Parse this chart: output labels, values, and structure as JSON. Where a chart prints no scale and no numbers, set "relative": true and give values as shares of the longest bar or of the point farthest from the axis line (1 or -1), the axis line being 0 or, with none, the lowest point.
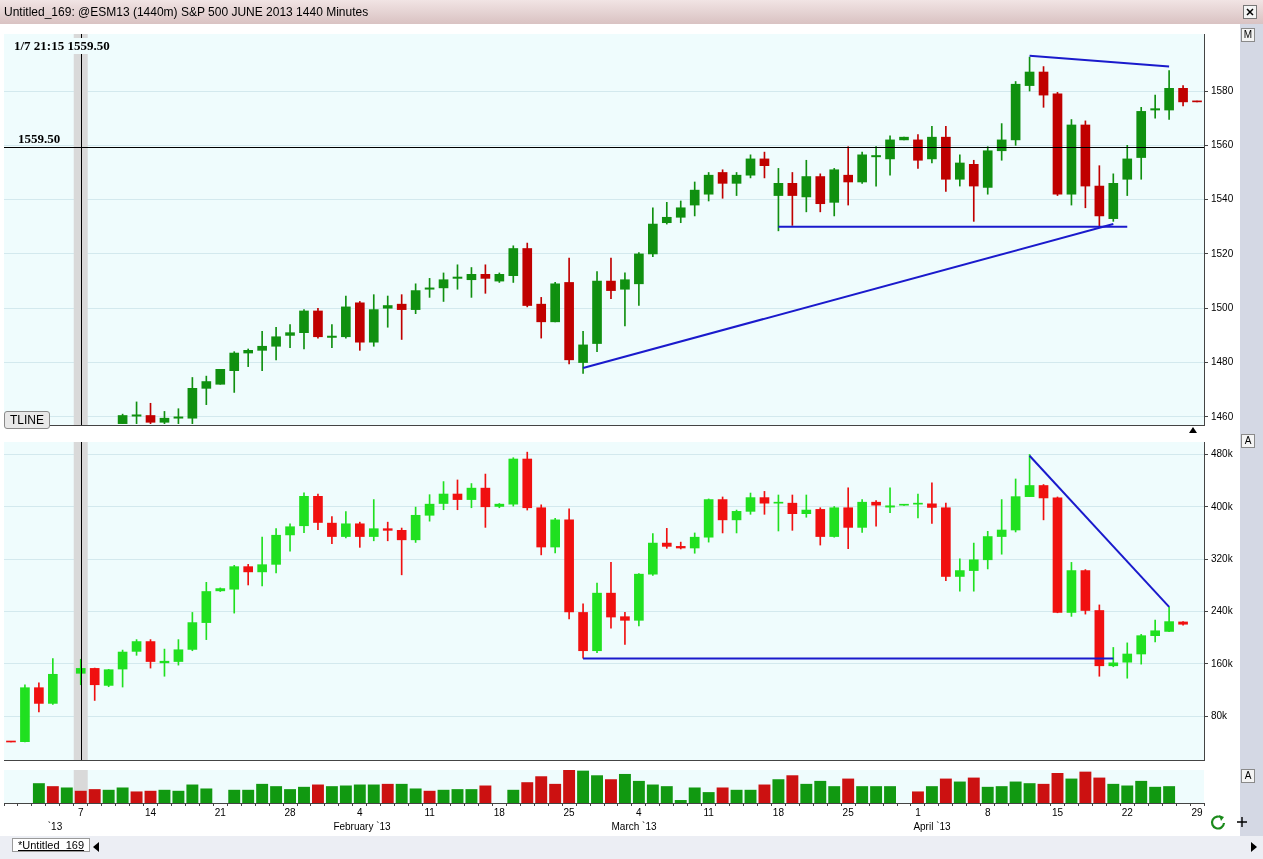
{
  "chart_data": [
    {
      "type": "candlestick",
      "title": "Untitled_169: @ESM13 (1440m) S&P 500 JUNE 2013 1440 Minutes",
      "categories": [
        null,
        null,
        null,
        null,
        null,
        "7",
        null,
        null,
        null,
        null,
        "14",
        null,
        null,
        null,
        null,
        "21",
        null,
        null,
        null,
        null,
        "28",
        null,
        null,
        null,
        null,
        "4",
        null,
        null,
        null,
        null,
        "11",
        null,
        null,
        null,
        null,
        "18",
        null,
        null,
        null,
        null,
        "25",
        null,
        null,
        null,
        null,
        "4",
        null,
        null,
        null,
        null,
        "11",
        null,
        null,
        null,
        null,
        "18",
        null,
        null,
        null,
        null,
        "25",
        null,
        null,
        null,
        null,
        "1",
        null,
        null,
        null,
        null,
        "8",
        null,
        null,
        null,
        null,
        "15",
        null,
        null,
        null,
        null,
        "22",
        null,
        null,
        null,
        null,
        "29"
      ],
      "ohlc": [
        null,
        null,
        null,
        null,
        null,
        null,
        null,
        null,
        [
          1457.5,
          1461,
          1457.5,
          1460.5
        ],
        [
          1460.25,
          1465.5,
          1457.5,
          1460.75
        ],
        [
          1460.5,
          1465,
          1457.5,
          1458
        ],
        [
          1458,
          1462,
          1457.5,
          1459.5
        ],
        [
          1459.5,
          1463,
          1457.5,
          1460
        ],
        [
          1459.5,
          1474.5,
          1457.5,
          1470.5
        ],
        [
          1470.5,
          1475,
          1464.5,
          1473
        ],
        [
          1472,
          1477.5,
          1472,
          1477.5
        ],
        [
          1477,
          1484,
          1469,
          1483.5
        ],
        [
          1483.5,
          1485,
          1478.5,
          1484.5
        ],
        [
          1484.5,
          1491.5,
          1477,
          1486
        ],
        [
          1486,
          1493,
          1481,
          1489.5
        ],
        [
          1490,
          1494,
          1485.5,
          1491
        ],
        [
          1491,
          1499.5,
          1485,
          1499
        ],
        [
          1499,
          1500,
          1489,
          1489.5
        ],
        [
          1489.25,
          1494,
          1485.5,
          1489.75
        ],
        [
          1489.5,
          1504.5,
          1489,
          1500.5
        ],
        [
          1502,
          1502.5,
          1484.5,
          1487.5
        ],
        [
          1487.5,
          1505,
          1486,
          1499.5
        ],
        [
          1500,
          1504.5,
          1493,
          1501
        ],
        [
          1501.5,
          1505,
          1488.5,
          1499.5
        ],
        [
          1499.5,
          1509,
          1498,
          1506.5
        ],
        [
          1507,
          1511,
          1504,
          1507.5
        ],
        [
          1507.5,
          1513,
          1502.5,
          1510.5
        ],
        [
          1511,
          1516,
          1507,
          1511.5
        ],
        [
          1510.5,
          1515,
          1504,
          1512.5
        ],
        [
          1512.5,
          1516,
          1505.5,
          1511
        ],
        [
          1510,
          1513,
          1509.5,
          1512.5
        ],
        [
          1512,
          1523,
          1509.5,
          1522
        ],
        [
          1522,
          1524,
          1500.5,
          1501
        ],
        [
          1501.5,
          1504,
          1489,
          1495
        ],
        [
          1495,
          1509.5,
          1495,
          1509
        ],
        [
          1509.5,
          1518.5,
          1479.5,
          1481
        ],
        [
          1480,
          1491.5,
          1476,
          1486.5
        ],
        [
          1487,
          1513.5,
          1484,
          1510
        ],
        [
          1510,
          1518.5,
          1503.5,
          1506.5
        ],
        [
          1507,
          1513,
          1493.5,
          1510.5
        ],
        [
          1509,
          1520.5,
          1501,
          1520
        ],
        [
          1520,
          1537,
          1519,
          1531
        ],
        [
          1531.5,
          1539,
          1531,
          1533.5
        ],
        [
          1533.5,
          1539.5,
          1531.5,
          1537
        ],
        [
          1538,
          1546.5,
          1534,
          1543.5
        ],
        [
          1542,
          1550,
          1539.5,
          1549
        ],
        [
          1550,
          1551,
          1540.5,
          1546
        ],
        [
          1546,
          1550,
          1541.5,
          1549
        ],
        [
          1549,
          1556.5,
          1548,
          1555
        ],
        [
          1555,
          1557.5,
          1548,
          1552.5
        ],
        [
          1541.5,
          1551.5,
          1528.5,
          1546
        ],
        [
          1546,
          1550,
          1530.5,
          1541.5
        ],
        [
          1541,
          1554.5,
          1535.5,
          1548.5
        ],
        [
          1548.5,
          1549.5,
          1535.5,
          1538.5
        ],
        [
          1539,
          1551.5,
          1534,
          1551
        ],
        [
          1549,
          1559.5,
          1538,
          1546.5
        ],
        [
          1546.5,
          1557.5,
          1546,
          1556.5
        ],
        [
          1555.75,
          1559.5,
          1545,
          1556.25
        ],
        [
          1555,
          1563.5,
          1549,
          1562
        ],
        [
          1562,
          1563,
          1562,
          1563
        ],
        [
          1562,
          1564,
          1551.5,
          1554.5
        ],
        [
          1555,
          1567,
          1553.5,
          1563
        ],
        [
          1563,
          1567,
          1543,
          1547.5
        ],
        [
          1547.5,
          1556.5,
          1545,
          1553.5
        ],
        [
          1553,
          1554.5,
          1532,
          1545
        ],
        [
          1544.5,
          1559.5,
          1542,
          1558
        ],
        [
          1558,
          1568,
          1554.5,
          1562
        ],
        [
          1562,
          1583.5,
          1560,
          1582.5
        ],
        [
          1582,
          1592.5,
          1580,
          1587
        ],
        [
          1587,
          1589,
          1574,
          1578.5
        ],
        [
          1579,
          1579.5,
          1541.5,
          1542
        ],
        [
          1542,
          1569.5,
          1538,
          1567.5
        ],
        [
          1567.5,
          1569,
          1537,
          1545
        ],
        [
          1545,
          1552.5,
          1530,
          1534
        ],
        [
          1533,
          1549.5,
          1532,
          1546
        ],
        [
          1547.5,
          1560,
          1541.5,
          1555
        ],
        [
          1555.5,
          1574,
          1547.5,
          1572.5
        ],
        [
          1573,
          1578.5,
          1570,
          1573.5
        ],
        [
          1573,
          1587.5,
          1569.5,
          1581
        ],
        [
          1581,
          1582,
          1574.5,
          1576
        ],
        [
          1576.25,
          1576.25,
          1576,
          1576
        ]
      ],
      "colors": [
        null,
        null,
        null,
        null,
        null,
        null,
        null,
        null,
        "#109010",
        "#109010",
        "#c00000",
        "#109010",
        "#109010",
        "#109010",
        "#109010",
        "#109010",
        "#109010",
        "#109010",
        "#109010",
        "#109010",
        "#109010",
        "#109010",
        "#c00000",
        "#109010",
        "#109010",
        "#c00000",
        "#109010",
        "#109010",
        "#c00000",
        "#109010",
        "#109010",
        "#109010",
        "#109010",
        "#109010",
        "#c00000",
        "#109010",
        "#109010",
        "#c00000",
        "#c00000",
        "#109010",
        "#c00000",
        "#109010",
        "#109010",
        "#c00000",
        "#109010",
        "#109010",
        "#109010",
        "#109010",
        "#109010",
        "#109010",
        "#109010",
        "#c00000",
        "#109010",
        "#109010",
        "#c00000",
        "#109010",
        "#c00000",
        "#109010",
        "#c00000",
        "#109010",
        "#c00000",
        "#109010",
        "#109010",
        "#109010",
        "#109010",
        "#c00000",
        "#109010",
        "#c00000",
        "#109010",
        "#c00000",
        "#109010",
        "#109010",
        "#109010",
        "#109010",
        "#c00000",
        "#c00000",
        "#109010",
        "#c00000",
        "#c00000",
        "#109010",
        "#109010",
        "#109010",
        "#109010",
        "#109010",
        "#c00000",
        "#c00000"
      ],
      "series": [
        {
          "type": "line",
          "color": "#1a1acc",
          "values": [
            null,
            null,
            null,
            null,
            null,
            null,
            null,
            null,
            null,
            null,
            null,
            null,
            null,
            null,
            null,
            null,
            null,
            null,
            null,
            null,
            null,
            null,
            null,
            null,
            null,
            null,
            null,
            null,
            null,
            null,
            null,
            null,
            null,
            null,
            null,
            null,
            null,
            null,
            null,
            null,
            null,
            1478,
            null,
            null,
            null,
            null,
            null,
            null,
            null,
            null,
            null,
            null,
            null,
            null,
            null,
            null,
            null,
            null,
            null,
            null,
            null,
            null,
            null,
            null,
            null,
            null,
            null,
            null,
            null,
            null,
            null,
            null,
            null,
            null,
            null,
            null,
            null,
            null,
            null,
            1531,
            null,
            null,
            null,
            null,
            null,
            null
          ]
        },
        {
          "type": "line",
          "color": "#1a1acc",
          "values": [
            null,
            null,
            null,
            null,
            null,
            null,
            null,
            null,
            null,
            null,
            null,
            null,
            null,
            null,
            null,
            null,
            null,
            null,
            null,
            null,
            null,
            null,
            null,
            null,
            null,
            null,
            null,
            null,
            null,
            null,
            null,
            null,
            null,
            null,
            null,
            null,
            null,
            null,
            null,
            null,
            null,
            null,
            null,
            null,
            null,
            null,
            null,
            null,
            null,
            null,
            null,
            null,
            null,
            null,
            null,
            1530,
            null,
            null,
            null,
            null,
            null,
            null,
            null,
            null,
            null,
            null,
            null,
            null,
            null,
            null,
            null,
            null,
            null,
            null,
            null,
            null,
            null,
            null,
            null,
            null,
            1530,
            null,
            null,
            null,
            null,
            null
          ]
        },
        {
          "type": "line",
          "color": "#1a1acc",
          "values": [
            null,
            null,
            null,
            null,
            null,
            null,
            null,
            null,
            null,
            null,
            null,
            null,
            null,
            null,
            null,
            null,
            null,
            null,
            null,
            null,
            null,
            null,
            null,
            null,
            null,
            null,
            null,
            null,
            null,
            null,
            null,
            null,
            null,
            null,
            null,
            null,
            null,
            null,
            null,
            null,
            null,
            null,
            null,
            null,
            null,
            null,
            null,
            null,
            null,
            null,
            null,
            null,
            null,
            null,
            null,
            null,
            null,
            null,
            null,
            null,
            null,
            null,
            null,
            null,
            null,
            null,
            null,
            null,
            null,
            null,
            null,
            null,
            null,
            1593,
            null,
            null,
            null,
            null,
            null,
            null,
            null,
            null,
            null,
            1589,
            null,
            null
          ]
        }
      ],
      "ylim": [
        1457,
        1601
      ],
      "yticks": [
        1460,
        1480,
        1500,
        1520,
        1540,
        1560,
        1580
      ],
      "grid": "y",
      "tick_labels": "y",
      "ref_lines": [
        {
          "axis": "y",
          "value": 1559.5,
          "label": "1559.50",
          "color": "#000000"
        },
        {
          "axis": "x",
          "value": "7",
          "color": "#000000"
        }
      ],
      "bands": [
        {
          "axis": "x",
          "from": "7",
          "to": "7",
          "color": "#d9d9d9"
        }
      ],
      "annotations": [
        "1/7 21:15 1559.50",
        "TLINE",
        "M"
      ]
    },
    {
      "type": "candlestick",
      "categories": [
        null,
        null,
        null,
        null,
        null,
        "7",
        null,
        null,
        null,
        null,
        "14",
        null,
        null,
        null,
        null,
        "21",
        null,
        null,
        null,
        null,
        "28",
        null,
        null,
        null,
        null,
        "4",
        null,
        null,
        null,
        null,
        "11",
        null,
        null,
        null,
        null,
        "18",
        null,
        null,
        null,
        null,
        "25",
        null,
        null,
        null,
        null,
        "4",
        null,
        null,
        null,
        null,
        "11",
        null,
        null,
        null,
        null,
        "18",
        null,
        null,
        null,
        null,
        "25",
        null,
        null,
        null,
        null,
        "1",
        null,
        null,
        null,
        null,
        "8",
        null,
        null,
        null,
        null,
        "15",
        null,
        null,
        null,
        null,
        "22",
        null,
        null,
        null,
        null,
        "29"
      ],
      "ohlc": [
        [
          41,
          41,
          40.5,
          40.5
        ],
        [
          41,
          128,
          40.5,
          123.5
        ],
        [
          123.5,
          131,
          86.5,
          99.5
        ],
        [
          99.5,
          168,
          98,
          144
        ],
        null,
        [
          145.5,
          167,
          128,
          153
        ],
        [
          153,
          153.5,
          104,
          128
        ],
        [
          127,
          151.5,
          125,
          151
        ],
        [
          152,
          181,
          124.5,
          178
        ],
        [
          179,
          197,
          173,
          194
        ],
        [
          194,
          197,
          153.5,
          163.5
        ],
        [
          161.5,
          182.5,
          141,
          164
        ],
        [
          163.5,
          197,
          158,
          181.5
        ],
        [
          182,
          238.5,
          180,
          223
        ],
        [
          223,
          284.5,
          197,
          270.5
        ],
        [
          271.5,
          276,
          270.5,
          275
        ],
        [
          274,
          310.5,
          237.5,
          308.5
        ],
        [
          308.5,
          312,
          280.5,
          300.5
        ],
        [
          300.5,
          353.5,
          279,
          311.5
        ],
        [
          312,
          366.5,
          299,
          356.5
        ],
        [
          357,
          374,
          332,
          369.5
        ],
        [
          371,
          421.5,
          360.5,
          416
        ],
        [
          416,
          419.5,
          365,
          376
        ],
        [
          375,
          385,
          343.5,
          354.5
        ],
        [
          354.5,
          392.5,
          352.5,
          374
        ],
        [
          374,
          376.5,
          338,
          354.5
        ],
        [
          354.5,
          411,
          348,
          366.5
        ],
        [
          366.5,
          376.5,
          348,
          364
        ],
        [
          364,
          367.5,
          296,
          349.5
        ],
        [
          349.5,
          399.5,
          345.5,
          387
        ],
        [
          387,
          418.5,
          378,
          404
        ],
        [
          405,
          438.5,
          395.5,
          419.5
        ],
        [
          419.5,
          441,
          395.5,
          411
        ],
        [
          411,
          435.5,
          398.5,
          428.5
        ],
        [
          428.5,
          450,
          368.5,
          400
        ],
        [
          400.5,
          405,
          398.5,
          404
        ],
        [
          404,
          475,
          401,
          473
        ],
        [
          473,
          483.5,
          395,
          398.5
        ],
        [
          398.5,
          403,
          326.5,
          338.5
        ],
        [
          338.5,
          382.5,
          329.5,
          380
        ],
        [
          380,
          397,
          228.5,
          239.5
        ],
        [
          238.5,
          251.5,
          168.5,
          180
        ],
        [
          180,
          283.5,
          177,
          268
        ],
        [
          268,
          315,
          214.5,
          231.5
        ],
        [
          232,
          238.5,
          189.5,
          226.5
        ],
        [
          226.5,
          298,
          218,
          297
        ],
        [
          297,
          359,
          295,
          344.5
        ],
        [
          344.5,
          367,
          336.5,
          339.5
        ],
        [
          339.5,
          346,
          335.5,
          337
        ],
        [
          337,
          360,
          329,
          353.5
        ],
        [
          353.5,
          412,
          346,
          411
        ],
        [
          411,
          415,
          360,
          380
        ],
        [
          380,
          395,
          360,
          393
        ],
        [
          393,
          421,
          388.5,
          414
        ],
        [
          414,
          423.5,
          388.5,
          405.5
        ],
        [
          405.5,
          418,
          363,
          406.5
        ],
        [
          405.5,
          418,
          364,
          389.5
        ],
        [
          389.5,
          418,
          384,
          395
        ],
        [
          396,
          398.5,
          341.5,
          354.5
        ],
        [
          354.5,
          400.5,
          353.5,
          398.5
        ],
        [
          398.5,
          429,
          336,
          368.5
        ],
        [
          368.5,
          411,
          361,
          407
        ],
        [
          407,
          409.5,
          370.5,
          402.5
        ],
        [
          399.5,
          429,
          391,
          401.5
        ],
        [
          402.4,
          403,
          402,
          402.8
        ],
        [
          404,
          419.5,
          383,
          404.5
        ],
        [
          404.5,
          436.5,
          374.5,
          399
        ],
        [
          398.5,
          405.5,
          287,
          293.5
        ],
        [
          293.5,
          320.5,
          271,
          302.5
        ],
        [
          302.5,
          344.5,
          271,
          319
        ],
        [
          319,
          362.5,
          305,
          354.5
        ],
        [
          354.5,
          411,
          327.5,
          364.5
        ],
        [
          364.5,
          442.5,
          361.5,
          415.5
        ],
        [
          415.5,
          480,
          415.5,
          432.5
        ],
        [
          432.5,
          434,
          380,
          413.5
        ],
        [
          413.5,
          415,
          238,
          238.5
        ],
        [
          238.5,
          315,
          232.5,
          302.5
        ],
        [
          302.5,
          304,
          236,
          241.5
        ],
        [
          241.5,
          250,
          141,
          157
        ],
        [
          157,
          185,
          155.5,
          161.5
        ],
        [
          162.5,
          192,
          138,
          175
        ],
        [
          175,
          205,
          159.5,
          203
        ],
        [
          203,
          227,
          193.5,
          210.5
        ],
        [
          209.5,
          247,
          209,
          224.5
        ],
        [
          224,
          224.5,
          219,
          220.5
        ],
        null
      ],
      "colors": [
        "#f01010",
        "#20e020",
        "#f01010",
        "#20e020",
        null,
        "#20e020",
        "#f01010",
        "#20e020",
        "#20e020",
        "#20e020",
        "#f01010",
        "#20e020",
        "#20e020",
        "#20e020",
        "#20e020",
        "#20e020",
        "#20e020",
        "#f01010",
        "#20e020",
        "#20e020",
        "#20e020",
        "#20e020",
        "#f01010",
        "#f01010",
        "#20e020",
        "#f01010",
        "#20e020",
        "#f01010",
        "#f01010",
        "#20e020",
        "#20e020",
        "#20e020",
        "#f01010",
        "#20e020",
        "#f01010",
        "#20e020",
        "#20e020",
        "#f01010",
        "#f01010",
        "#20e020",
        "#f01010",
        "#f01010",
        "#20e020",
        "#f01010",
        "#f01010",
        "#20e020",
        "#20e020",
        "#f01010",
        "#f01010",
        "#20e020",
        "#20e020",
        "#f01010",
        "#20e020",
        "#20e020",
        "#f01010",
        "#20e020",
        "#f01010",
        "#20e020",
        "#f01010",
        "#20e020",
        "#f01010",
        "#20e020",
        "#f01010",
        "#20e020",
        "#20e020",
        "#20e020",
        "#f01010",
        "#f01010",
        "#20e020",
        "#20e020",
        "#20e020",
        "#20e020",
        "#20e020",
        "#20e020",
        "#f01010",
        "#f01010",
        "#20e020",
        "#f01010",
        "#f01010",
        "#20e020",
        "#20e020",
        "#20e020",
        "#20e020",
        "#20e020",
        "#f01010",
        null
      ],
      "series": [
        {
          "type": "line",
          "color": "#1a1acc",
          "values": [
            null,
            null,
            null,
            null,
            null,
            null,
            null,
            null,
            null,
            null,
            null,
            null,
            null,
            null,
            null,
            null,
            null,
            null,
            null,
            null,
            null,
            null,
            null,
            null,
            null,
            null,
            null,
            null,
            null,
            null,
            null,
            null,
            null,
            null,
            null,
            null,
            null,
            null,
            null,
            null,
            null,
            null,
            null,
            null,
            null,
            null,
            null,
            null,
            null,
            null,
            null,
            null,
            null,
            null,
            null,
            null,
            null,
            null,
            null,
            null,
            null,
            null,
            null,
            null,
            null,
            null,
            null,
            null,
            null,
            null,
            null,
            null,
            null,
            478,
            null,
            null,
            null,
            null,
            null,
            null,
            null,
            null,
            null,
            247,
            null,
            null
          ]
        },
        {
          "type": "line",
          "color": "#1a1acc",
          "values": [
            null,
            null,
            null,
            null,
            null,
            null,
            null,
            null,
            null,
            null,
            null,
            null,
            null,
            null,
            null,
            null,
            null,
            null,
            null,
            null,
            null,
            null,
            null,
            null,
            null,
            null,
            null,
            null,
            null,
            null,
            null,
            null,
            null,
            null,
            null,
            null,
            null,
            null,
            null,
            null,
            null,
            168,
            null,
            null,
            null,
            null,
            null,
            null,
            null,
            null,
            null,
            null,
            null,
            null,
            null,
            null,
            null,
            null,
            null,
            null,
            null,
            null,
            null,
            null,
            null,
            null,
            null,
            null,
            null,
            null,
            null,
            null,
            null,
            null,
            null,
            null,
            null,
            null,
            null,
            168,
            null,
            null,
            null,
            null,
            null,
            null
          ]
        }
      ],
      "ylim": [
        13,
        499
      ],
      "yticks": [
        {
          "value": 80,
          "label": "80k"
        },
        {
          "value": 160,
          "label": "160k"
        },
        {
          "value": 240,
          "label": "240k"
        },
        {
          "value": 320,
          "label": "320k"
        },
        {
          "value": 400,
          "label": "400k"
        },
        {
          "value": 480,
          "label": "480k"
        }
      ],
      "grid": "y",
      "tick_labels": "y",
      "ref_lines": [
        {
          "axis": "x",
          "value": "7",
          "color": "#000000"
        }
      ],
      "bands": [
        {
          "axis": "x",
          "from": "7",
          "to": "7",
          "color": "#d9d9d9"
        }
      ],
      "annotations": [
        "A"
      ]
    },
    {
      "type": "bar",
      "relative": true,
      "tick_labels": "x",
      "categories": [
        null,
        null,
        null,
        null,
        null,
        "7",
        null,
        null,
        null,
        null,
        "14",
        null,
        null,
        null,
        null,
        "21",
        null,
        null,
        null,
        null,
        "28",
        null,
        null,
        null,
        null,
        "4",
        null,
        null,
        null,
        null,
        "11",
        null,
        null,
        null,
        null,
        "18",
        null,
        null,
        null,
        null,
        "25",
        null,
        null,
        null,
        null,
        "4",
        null,
        null,
        null,
        null,
        "11",
        null,
        null,
        null,
        null,
        "18",
        null,
        null,
        null,
        null,
        "25",
        null,
        null,
        null,
        null,
        "1",
        null,
        null,
        null,
        null,
        "8",
        null,
        null,
        null,
        null,
        "15",
        null,
        null,
        null,
        null,
        "22",
        null,
        null,
        null,
        null,
        "29"
      ],
      "values": [
        null,
        null,
        0.6,
        0.51,
        0.47,
        0.37,
        0.42,
        0.4,
        0.47,
        0.35,
        0.37,
        0.4,
        0.37,
        0.56,
        0.44,
        null,
        0.4,
        0.4,
        0.58,
        0.51,
        0.42,
        0.49,
        0.56,
        0.51,
        0.53,
        0.56,
        0.56,
        0.58,
        0.58,
        0.44,
        0.37,
        0.4,
        0.42,
        0.42,
        0.53,
        null,
        0.4,
        0.63,
        0.81,
        0.58,
        1,
        0.98,
        0.84,
        0.72,
        0.88,
        0.67,
        0.56,
        0.51,
        0.09,
        0.47,
        0.33,
        0.47,
        0.4,
        0.4,
        0.56,
        0.72,
        0.84,
        0.58,
        0.67,
        0.51,
        0.74,
        0.51,
        0.51,
        0.51,
        null,
        0.35,
        0.51,
        0.74,
        0.65,
        0.77,
        0.49,
        0.51,
        0.65,
        0.6,
        0.58,
        0.91,
        0.74,
        0.95,
        0.77,
        0.58,
        0.53,
        0.67,
        0.49,
        0.51,
        null,
        null
      ],
      "colors": [
        null,
        null,
        "#119911",
        "#cc1111",
        "#119911",
        "#cc1111",
        "#cc1111",
        "#119911",
        "#119911",
        "#cc1111",
        "#cc1111",
        "#119911",
        "#119911",
        "#119911",
        "#119911",
        null,
        "#119911",
        "#119911",
        "#119911",
        "#119911",
        "#119911",
        "#119911",
        "#cc1111",
        "#119911",
        "#119911",
        "#119911",
        "#119911",
        "#cc1111",
        "#119911",
        "#119911",
        "#cc1111",
        "#119911",
        "#119911",
        "#119911",
        "#cc1111",
        null,
        "#119911",
        "#cc1111",
        "#cc1111",
        "#cc1111",
        "#cc1111",
        "#119911",
        "#119911",
        "#cc1111",
        "#119911",
        "#119911",
        "#119911",
        "#119911",
        "#119911",
        "#119911",
        "#119911",
        "#cc1111",
        "#119911",
        "#119911",
        "#cc1111",
        "#119911",
        "#cc1111",
        "#119911",
        "#119911",
        "#119911",
        "#cc1111",
        "#119911",
        "#119911",
        "#119911",
        null,
        "#cc1111",
        "#119911",
        "#cc1111",
        "#119911",
        "#cc1111",
        "#119911",
        "#119911",
        "#119911",
        "#119911",
        "#cc1111",
        "#cc1111",
        "#119911",
        "#cc1111",
        "#cc1111",
        "#119911",
        "#119911",
        "#119911",
        "#119911",
        "#119911",
        null,
        null
      ],
      "bands": [
        {
          "axis": "x",
          "from": "7",
          "to": "7",
          "color": "#d9d9d9"
        }
      ],
      "annotations": [
        "A",
        "`13",
        "February `13",
        "March `13",
        "April `13",
        "*Untitled_169"
      ]
    }
  ]
}
